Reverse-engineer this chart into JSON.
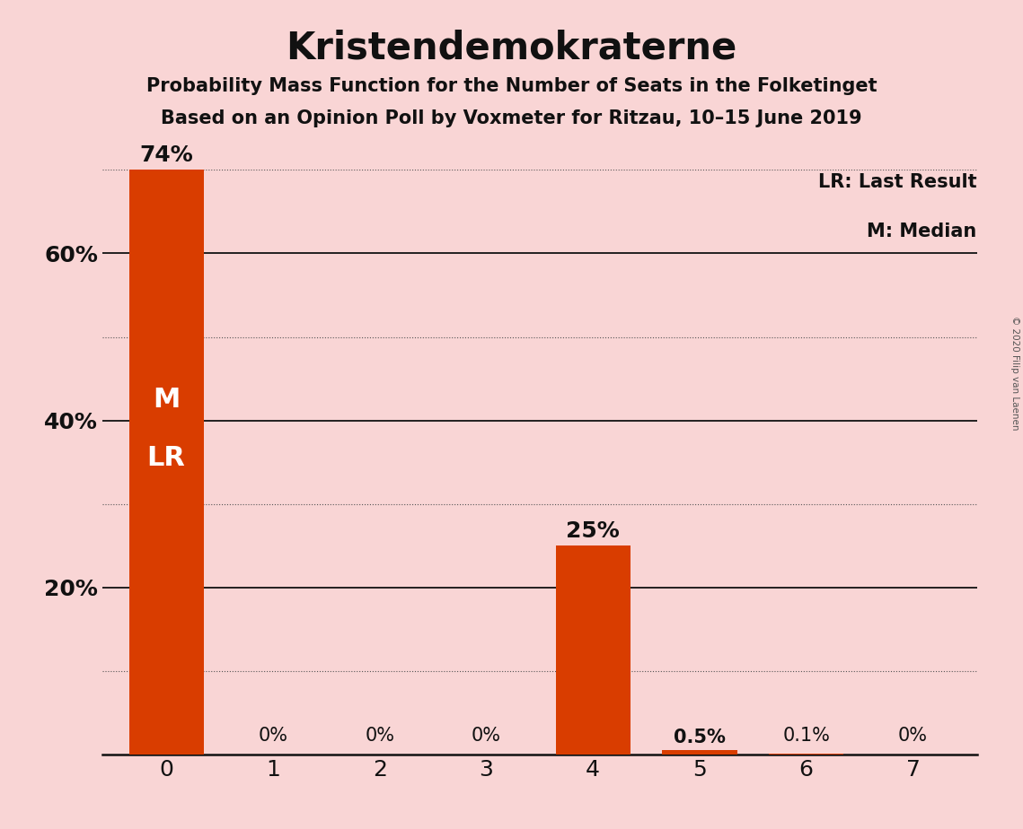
{
  "title": "Kristendemokraterne",
  "subtitle1": "Probability Mass Function for the Number of Seats in the Folketinget",
  "subtitle2": "Based on an Opinion Poll by Voxmeter for Ritzau, 10–15 June 2019",
  "categories": [
    0,
    1,
    2,
    3,
    4,
    5,
    6,
    7
  ],
  "values": [
    0.74,
    0.0,
    0.0,
    0.0,
    0.25,
    0.005,
    0.001,
    0.0
  ],
  "bar_labels": [
    "74%",
    "0%",
    "0%",
    "0%",
    "25%",
    "0.5%",
    "0.1%",
    "0%"
  ],
  "bar_color": "#d93d00",
  "background_color": "#f9d5d5",
  "text_color": "#111111",
  "ylim": [
    0,
    0.7
  ],
  "ytick_values": [
    0.0,
    0.2,
    0.4,
    0.6
  ],
  "ytick_labels": [
    "",
    "20%",
    "40%",
    "60%"
  ],
  "solid_yticks": [
    0.2,
    0.4,
    0.6
  ],
  "dotted_yticks": [
    0.1,
    0.3,
    0.5,
    0.7
  ],
  "legend_text1": "LR: Last Result",
  "legend_text2": "M: Median",
  "copyright_text": "© 2020 Filip van Laenen",
  "title_fontsize": 30,
  "subtitle_fontsize": 15,
  "bar_label_inside_fontsize": 22,
  "bar_label_above_fontsize": 18,
  "axis_tick_fontsize": 18,
  "small_label_fontsize": 15,
  "legend_fontsize": 15
}
